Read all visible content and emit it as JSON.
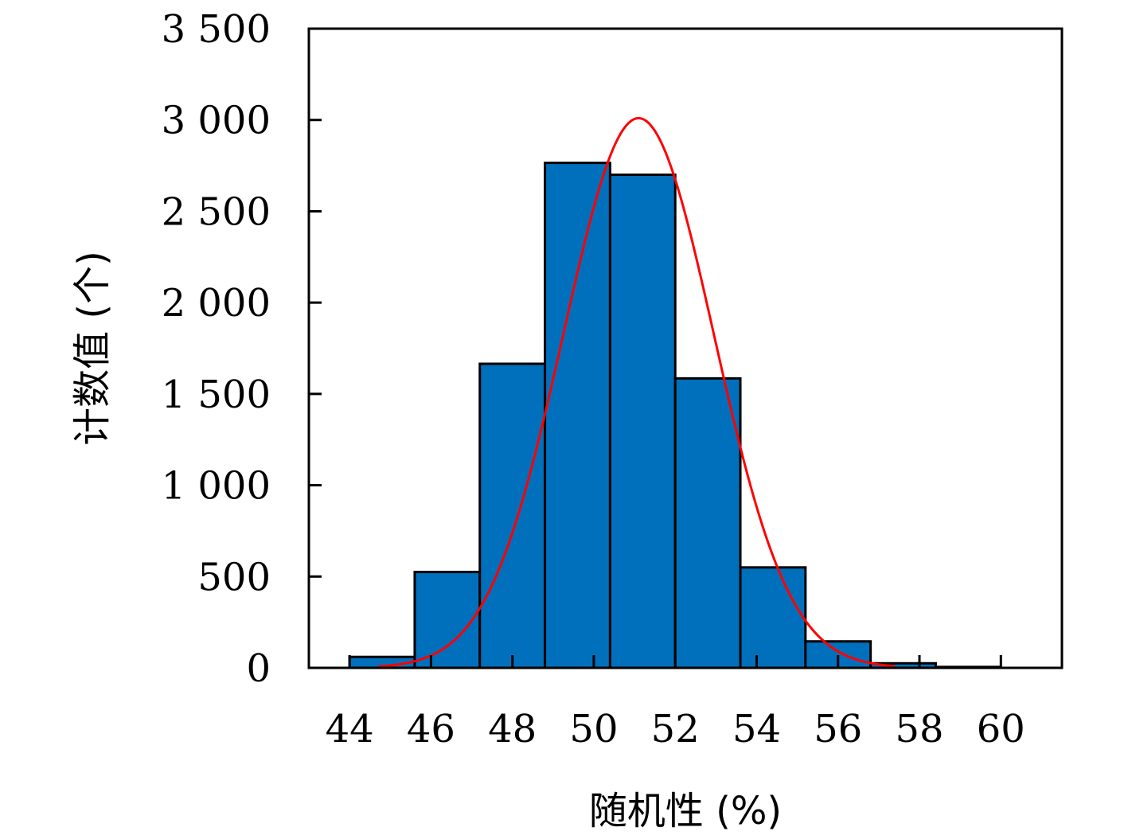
{
  "chart_data": {
    "type": "bar",
    "title": "",
    "xlabel": "随机性 (%)",
    "ylabel": "计数值 (个)",
    "xlim": [
      43,
      61.5
    ],
    "ylim": [
      0,
      3500
    ],
    "x_ticks": [
      44,
      46,
      48,
      50,
      52,
      54,
      56,
      58,
      60
    ],
    "x_tick_labels": [
      "44",
      "46",
      "48",
      "50",
      "52",
      "54",
      "56",
      "58",
      "60"
    ],
    "y_ticks": [
      0,
      500,
      1000,
      1500,
      2000,
      2500,
      3000,
      3500
    ],
    "y_tick_labels": [
      "0",
      "500",
      "1 000",
      "1 500",
      "2 000",
      "2 500",
      "3 000",
      "3 500"
    ],
    "bin_width": 1.6,
    "bins": [
      {
        "start": 44.0,
        "value": 60
      },
      {
        "start": 45.6,
        "value": 525
      },
      {
        "start": 47.2,
        "value": 1665
      },
      {
        "start": 48.8,
        "value": 2765
      },
      {
        "start": 50.4,
        "value": 2700
      },
      {
        "start": 52.0,
        "value": 1585
      },
      {
        "start": 53.6,
        "value": 550
      },
      {
        "start": 55.2,
        "value": 145
      },
      {
        "start": 56.8,
        "value": 25
      },
      {
        "start": 58.4,
        "value": 5
      }
    ],
    "fit_curve": {
      "type": "normal",
      "mean": 51.1,
      "sd": 1.85,
      "peak": 3010,
      "x_range": [
        44.7,
        57.4
      ]
    },
    "grid": false,
    "legend": "none",
    "colors": {
      "bar_fill": "#0070BC",
      "bar_edge": "#000000",
      "fit_line": "#FF0000"
    }
  }
}
